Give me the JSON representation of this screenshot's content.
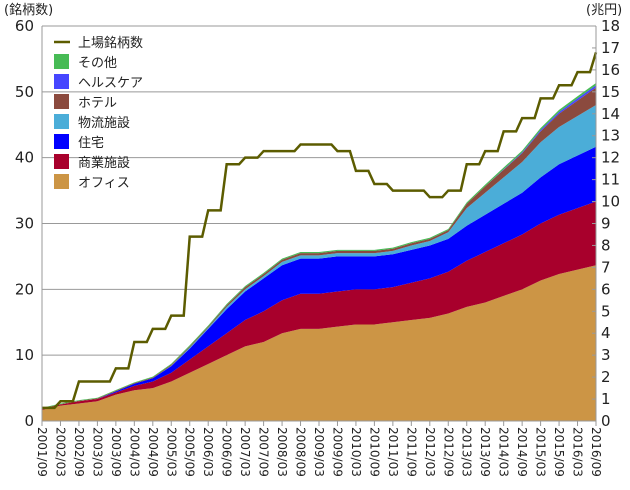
{
  "chart_data": {
    "type": "area",
    "left_axis_label": "(銘柄数)",
    "right_axis_label": "(兆円)",
    "left_ylim": [
      0,
      60
    ],
    "left_ticks": [
      0,
      10,
      20,
      30,
      40,
      50,
      60
    ],
    "right_ylim": [
      0,
      18
    ],
    "right_ticks": [
      0,
      1,
      2,
      3,
      4,
      5,
      6,
      7,
      8,
      9,
      10,
      11,
      12,
      13,
      14,
      15,
      16,
      17,
      18
    ],
    "grid": true,
    "legend_position": "top-left",
    "categories": [
      "2001/09",
      "2002/03",
      "2002/09",
      "2003/03",
      "2003/09",
      "2004/03",
      "2004/09",
      "2005/03",
      "2005/09",
      "2006/03",
      "2006/09",
      "2007/03",
      "2007/09",
      "2008/03",
      "2008/09",
      "2009/03",
      "2009/09",
      "2010/03",
      "2010/09",
      "2011/03",
      "2011/09",
      "2012/03",
      "2012/09",
      "2013/03",
      "2013/09",
      "2014/03",
      "2014/09",
      "2015/03",
      "2015/09",
      "2016/03",
      "2016/09"
    ],
    "line": {
      "name": "上場銘柄数",
      "axis": "left",
      "color": "#5c5c00",
      "values": [
        2,
        3,
        6,
        6,
        8,
        12,
        14,
        16,
        28,
        32,
        39,
        40,
        41,
        41,
        42,
        42,
        41,
        38,
        36,
        35,
        35,
        34,
        35,
        39,
        41,
        44,
        46,
        49,
        51,
        53,
        56
      ]
    },
    "series": [
      {
        "name": "オフィス",
        "color": "#cc9545",
        "values": [
          0.5,
          0.7,
          0.8,
          0.9,
          1.2,
          1.4,
          1.5,
          1.8,
          2.2,
          2.6,
          3.0,
          3.4,
          3.6,
          4.0,
          4.2,
          4.2,
          4.3,
          4.4,
          4.4,
          4.5,
          4.6,
          4.7,
          4.9,
          5.2,
          5.4,
          5.7,
          6.0,
          6.4,
          6.7,
          6.9,
          7.1
        ]
      },
      {
        "name": "商業施設",
        "color": "#a8002c",
        "values": [
          0.05,
          0.05,
          0.1,
          0.1,
          0.1,
          0.2,
          0.3,
          0.4,
          0.6,
          0.8,
          1.0,
          1.2,
          1.4,
          1.5,
          1.6,
          1.6,
          1.6,
          1.6,
          1.6,
          1.6,
          1.7,
          1.8,
          1.9,
          2.1,
          2.3,
          2.4,
          2.5,
          2.6,
          2.7,
          2.8,
          2.9
        ]
      },
      {
        "name": "住宅",
        "color": "#0000ff",
        "values": [
          0,
          0,
          0,
          0,
          0.05,
          0.1,
          0.15,
          0.3,
          0.5,
          0.8,
          1.1,
          1.3,
          1.5,
          1.6,
          1.6,
          1.6,
          1.6,
          1.5,
          1.5,
          1.5,
          1.5,
          1.5,
          1.5,
          1.6,
          1.7,
          1.8,
          1.9,
          2.1,
          2.3,
          2.4,
          2.5
        ]
      },
      {
        "name": "物流施設",
        "color": "#4badd8",
        "values": [
          0,
          0,
          0,
          0,
          0,
          0,
          0,
          0.02,
          0.05,
          0.05,
          0.1,
          0.1,
          0.1,
          0.15,
          0.15,
          0.15,
          0.15,
          0.15,
          0.15,
          0.15,
          0.2,
          0.2,
          0.3,
          0.8,
          1.0,
          1.2,
          1.4,
          1.6,
          1.7,
          1.8,
          1.9
        ]
      },
      {
        "name": "ホテル",
        "color": "#8b4a3e",
        "values": [
          0.02,
          0.02,
          0.02,
          0.03,
          0.03,
          0.03,
          0.03,
          0.05,
          0.05,
          0.05,
          0.08,
          0.1,
          0.1,
          0.1,
          0.1,
          0.1,
          0.1,
          0.1,
          0.1,
          0.1,
          0.1,
          0.1,
          0.1,
          0.2,
          0.3,
          0.35,
          0.4,
          0.5,
          0.6,
          0.7,
          0.8
        ]
      },
      {
        "name": "ヘルスケア",
        "color": "#4646ff",
        "values": [
          0,
          0,
          0,
          0,
          0,
          0,
          0,
          0,
          0,
          0,
          0,
          0,
          0,
          0,
          0,
          0,
          0,
          0,
          0,
          0,
          0,
          0,
          0,
          0,
          0,
          0.02,
          0.04,
          0.06,
          0.08,
          0.1,
          0.1
        ]
      },
      {
        "name": "その他",
        "color": "#47bb55",
        "values": [
          0.03,
          0.03,
          0.03,
          0.03,
          0.03,
          0.03,
          0.04,
          0.04,
          0.05,
          0.05,
          0.05,
          0.05,
          0.05,
          0.05,
          0.05,
          0.05,
          0.05,
          0.05,
          0.05,
          0.05,
          0.05,
          0.05,
          0.05,
          0.06,
          0.07,
          0.08,
          0.08,
          0.09,
          0.1,
          0.1,
          0.1
        ]
      }
    ]
  }
}
